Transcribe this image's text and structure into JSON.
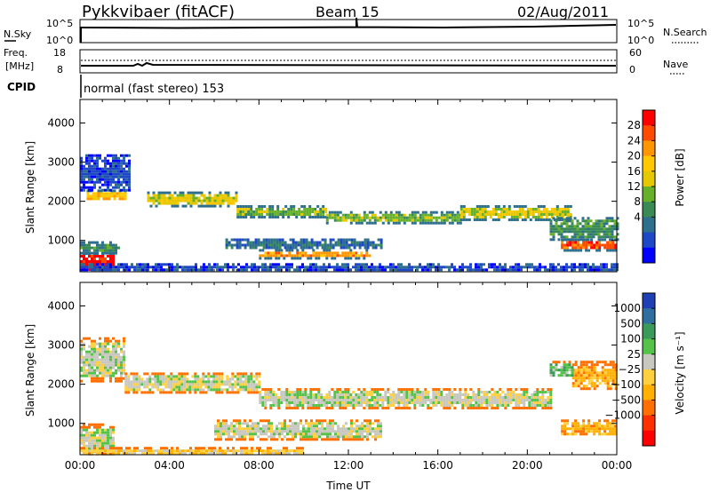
{
  "header": {
    "station": "Pykkvibaer (fitACF)",
    "beam": "Beam 15",
    "date": "02/Aug/2011"
  },
  "noise_panel": {
    "left_label": "N.Sky",
    "right_label": "N.Search",
    "left_ticks": [
      "10^5",
      "10^0"
    ],
    "right_ticks": [
      "10^5",
      "10^0"
    ]
  },
  "freq_panel": {
    "left_label_1": "Freq.",
    "left_label_2": "[MHz]",
    "right_label": "Nave",
    "left_ticks": [
      "18",
      "8"
    ],
    "right_ticks": [
      "60",
      "0"
    ]
  },
  "cpid": {
    "label": "CPID",
    "value": "normal (fast stereo) 153"
  },
  "chart_data": [
    {
      "type": "heatmap",
      "name": "power",
      "ylabel": "Slant Range [km]",
      "xlim_hours": [
        0,
        24
      ],
      "ylim": [
        200,
        4600
      ],
      "yticks": [
        1000,
        2000,
        3000,
        4000
      ],
      "colorbar": {
        "label": "Power [dB]",
        "ticks": [
          "28",
          "24",
          "20",
          "16",
          "12",
          "8",
          "4"
        ],
        "colors": [
          "#ff0000",
          "#ff4b00",
          "#ff9600",
          "#ffc800",
          "#e6c800",
          "#66b02a",
          "#3a8a55",
          "#2f6f8e",
          "#1f48c6",
          "#0000ff"
        ]
      },
      "bands": [
        {
          "t0": 0.0,
          "t1": 1.5,
          "r0": 230,
          "r1": 700,
          "level": 0
        },
        {
          "t0": 0.0,
          "t1": 1.7,
          "r0": 700,
          "r1": 980,
          "level": 6
        },
        {
          "t0": 0.3,
          "t1": 2.0,
          "r0": 2050,
          "r1": 2300,
          "level": 3
        },
        {
          "t0": 0.0,
          "t1": 2.2,
          "r0": 2300,
          "r1": 3200,
          "level": 8
        },
        {
          "t0": 3.0,
          "t1": 7.0,
          "r0": 1900,
          "r1": 2250,
          "level": 4
        },
        {
          "t0": 7.0,
          "t1": 11.0,
          "r0": 1600,
          "r1": 1900,
          "level": 5
        },
        {
          "t0": 11.0,
          "t1": 17.0,
          "r0": 1450,
          "r1": 1750,
          "level": 5
        },
        {
          "t0": 17.0,
          "t1": 22.0,
          "r0": 1550,
          "r1": 1900,
          "level": 4
        },
        {
          "t0": 8.0,
          "t1": 13.0,
          "r0": 550,
          "r1": 780,
          "level": 2
        },
        {
          "t0": 6.5,
          "t1": 13.5,
          "r0": 800,
          "r1": 1050,
          "level": 7
        },
        {
          "t0": 21.5,
          "t1": 24.0,
          "r0": 750,
          "r1": 1050,
          "level": 1
        },
        {
          "t0": 21.0,
          "t1": 24.0,
          "r0": 1050,
          "r1": 1600,
          "level": 6
        },
        {
          "t0": 0.0,
          "t1": 24.0,
          "r0": 230,
          "r1": 420,
          "level": 8
        }
      ]
    },
    {
      "type": "heatmap",
      "name": "velocity",
      "ylabel": "Slant Range [km]",
      "xlabel": "Time UT",
      "xticks": [
        "00:00",
        "04:00",
        "08:00",
        "12:00",
        "16:00",
        "20:00",
        "00:00"
      ],
      "xlim_hours": [
        0,
        24
      ],
      "ylim": [
        200,
        4600
      ],
      "yticks": [
        1000,
        2000,
        3000,
        4000
      ],
      "colorbar": {
        "label": "Velocity [m s⁻¹]",
        "ticks": [
          "1000",
          "500",
          "100",
          "25",
          "−25",
          "−100",
          "−500",
          "−1000"
        ],
        "colors": [
          "#1f3fb4",
          "#2e6fa0",
          "#3b9a5a",
          "#55c24a",
          "#c8c8c0",
          "#ffd040",
          "#ffb000",
          "#ff7000",
          "#ff3000",
          "#ff0000"
        ]
      },
      "bands": [
        {
          "t0": 0.0,
          "t1": 2.0,
          "r0": 2100,
          "r1": 3200,
          "level": 4
        },
        {
          "t0": 0.0,
          "t1": 1.5,
          "r0": 230,
          "r1": 1000,
          "level": 4
        },
        {
          "t0": 2.0,
          "t1": 8.0,
          "r0": 1800,
          "r1": 2300,
          "level": 4
        },
        {
          "t0": 8.0,
          "t1": 21.0,
          "r0": 1400,
          "r1": 1900,
          "level": 4
        },
        {
          "t0": 6.0,
          "t1": 13.5,
          "r0": 600,
          "r1": 1100,
          "level": 4
        },
        {
          "t0": 21.5,
          "t1": 24.0,
          "r0": 700,
          "r1": 1100,
          "level": 6
        },
        {
          "t0": 22.0,
          "t1": 24.0,
          "r0": 1900,
          "r1": 2600,
          "level": 6
        },
        {
          "t0": 21.0,
          "t1": 22.0,
          "r0": 2200,
          "r1": 2600,
          "level": 3
        },
        {
          "t0": 0.0,
          "t1": 10.0,
          "r0": 230,
          "r1": 400,
          "level": 5
        }
      ]
    }
  ]
}
